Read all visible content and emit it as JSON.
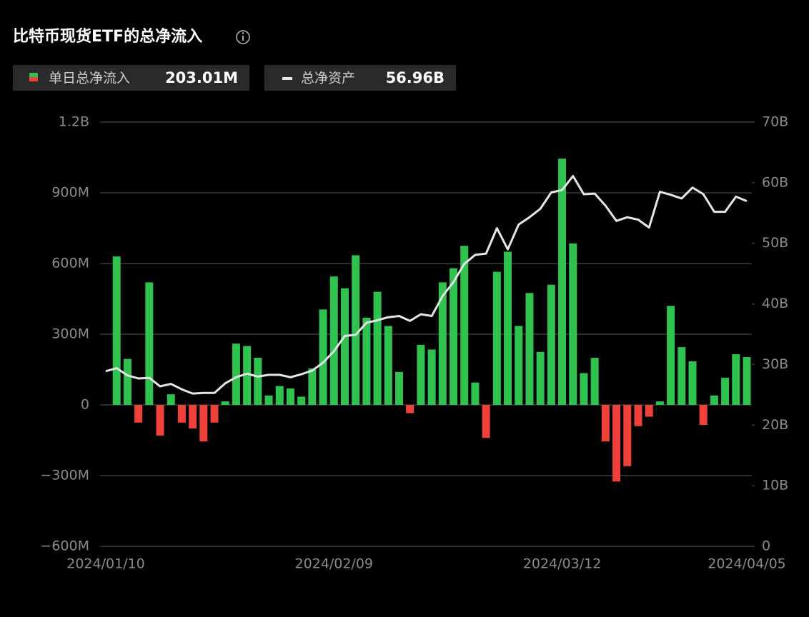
{
  "chart_data": {
    "type": "combo",
    "title": "比特币现货ETF的总净流入",
    "categories": [
      "2024/01/10",
      null,
      null,
      null,
      null,
      null,
      null,
      null,
      null,
      null,
      null,
      null,
      null,
      null,
      null,
      null,
      null,
      null,
      null,
      null,
      null,
      "2024/02/09",
      null,
      null,
      null,
      null,
      null,
      null,
      null,
      null,
      null,
      null,
      null,
      null,
      null,
      null,
      null,
      null,
      null,
      null,
      null,
      null,
      "2024/03/12",
      null,
      null,
      null,
      null,
      null,
      null,
      null,
      null,
      null,
      null,
      null,
      null,
      null,
      null,
      null,
      null,
      "2024/04/05"
    ],
    "series": [
      {
        "name": "单日总净流入",
        "type": "bar",
        "color": "#2fc24f",
        "negative_color": "#f0403a",
        "latest_label": "203.01M",
        "values": [
          0,
          630,
          195,
          -75,
          520,
          -130,
          45,
          -75,
          -100,
          -155,
          -75,
          15,
          260,
          250,
          200,
          40,
          80,
          70,
          35,
          155,
          405,
          545,
          495,
          635,
          370,
          480,
          335,
          140,
          -35,
          255,
          235,
          520,
          580,
          675,
          95,
          -140,
          565,
          650,
          335,
          475,
          225,
          510,
          1045,
          685,
          135,
          200,
          -155,
          -325,
          -260,
          -90,
          -50,
          15,
          420,
          245,
          185,
          -85,
          40,
          115,
          215,
          203.01
        ]
      },
      {
        "name": "总净资产",
        "type": "line",
        "axis": "y2",
        "color": "#e6e6e6",
        "latest_label": "56.96B",
        "values": [
          28.9,
          29.4,
          28.2,
          27.7,
          27.8,
          26.4,
          26.8,
          25.9,
          25.2,
          25.3,
          25.3,
          26.9,
          27.9,
          28.5,
          28.0,
          28.3,
          28.3,
          27.9,
          28.4,
          29.0,
          30.3,
          32.2,
          34.7,
          34.9,
          36.9,
          37.3,
          37.8,
          38.0,
          37.2,
          38.3,
          38.0,
          41.3,
          43.6,
          46.6,
          48.1,
          48.3,
          52.5,
          49.0,
          53.1,
          54.3,
          55.7,
          58.4,
          58.8,
          61.1,
          58.1,
          58.2,
          56.2,
          53.7,
          54.3,
          53.9,
          52.6,
          58.5,
          58.0,
          57.4,
          59.2,
          58.1,
          55.2,
          55.2,
          57.7,
          56.96
        ]
      }
    ],
    "ylim": [
      -600,
      1200
    ],
    "yticks": [
      {
        "value": -600,
        "label": "−600M"
      },
      {
        "value": -300,
        "label": "−300M"
      },
      0,
      {
        "value": 300,
        "label": "300M"
      },
      {
        "value": 600,
        "label": "600M"
      },
      {
        "value": 900,
        "label": "900M"
      },
      {
        "value": 1200,
        "label": "1.2B"
      }
    ],
    "y2lim": [
      0,
      70
    ],
    "y2ticks": [
      0,
      {
        "value": 10,
        "label": "10B"
      },
      {
        "value": 20,
        "label": "20B"
      },
      {
        "value": 30,
        "label": "30B"
      },
      {
        "value": 40,
        "label": "40B"
      },
      {
        "value": 50,
        "label": "50B"
      },
      {
        "value": 60,
        "label": "60B"
      },
      {
        "value": 70,
        "label": "70B"
      }
    ],
    "grid": true
  }
}
